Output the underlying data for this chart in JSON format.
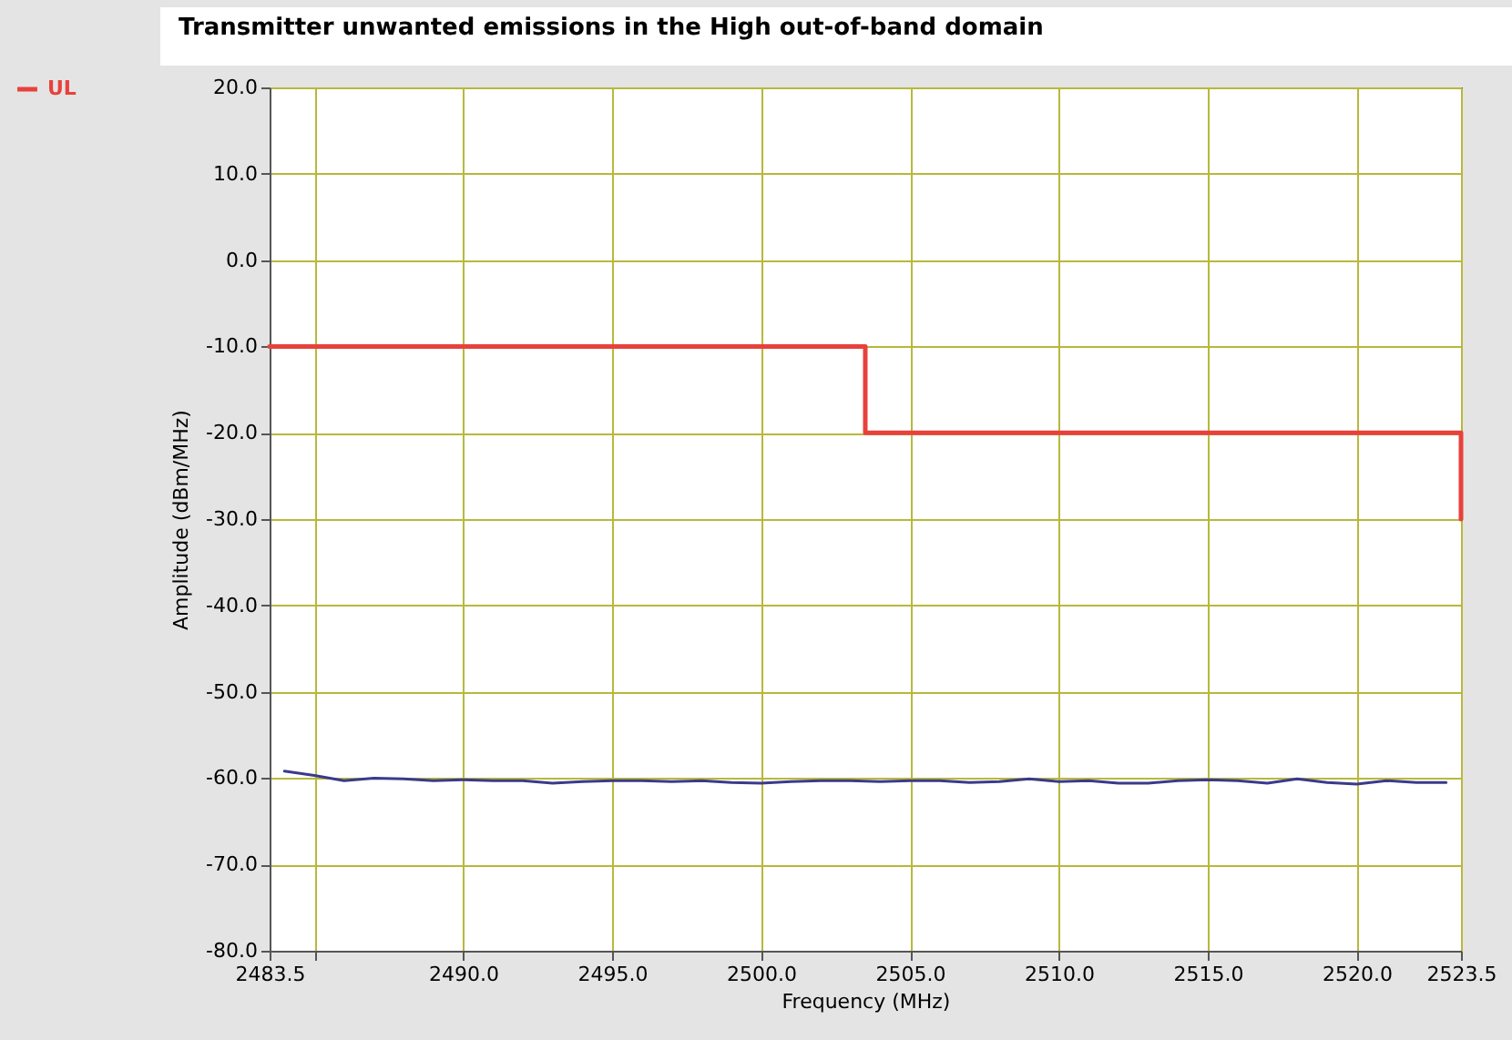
{
  "chart_data": {
    "type": "line",
    "title": "Transmitter unwanted emissions in the High out-of-band domain",
    "xlabel": "Frequency (MHz)",
    "ylabel": "Amplitude (dBm/MHz)",
    "series": [
      {
        "name": "UL",
        "color": "#e8413c",
        "x": [
          2483.5,
          2503.5,
          2503.5,
          2523.5,
          2523.5
        ],
        "values": [
          -10,
          -10,
          -20,
          -20,
          -30
        ]
      },
      {
        "color": "#3a3a8c",
        "x": [
          2484,
          2485,
          2486,
          2487,
          2488,
          2489,
          2490,
          2491,
          2492,
          2493,
          2494,
          2495,
          2496,
          2497,
          2498,
          2499,
          2500,
          2501,
          2502,
          2503,
          2504,
          2505,
          2506,
          2507,
          2508,
          2509,
          2510,
          2511,
          2512,
          2513,
          2514,
          2515,
          2516,
          2517,
          2518,
          2519,
          2520,
          2521,
          2522,
          2523
        ],
        "values": [
          -59.2,
          -59.7,
          -60.3,
          -60.0,
          -60.1,
          -60.3,
          -60.2,
          -60.3,
          -60.3,
          -60.6,
          -60.4,
          -60.3,
          -60.3,
          -60.4,
          -60.3,
          -60.5,
          -60.6,
          -60.4,
          -60.3,
          -60.3,
          -60.4,
          -60.3,
          -60.3,
          -60.5,
          -60.4,
          -60.1,
          -60.4,
          -60.3,
          -60.6,
          -60.6,
          -60.3,
          -60.2,
          -60.3,
          -60.6,
          -60.1,
          -60.5,
          -60.7,
          -60.3,
          -60.5,
          -60.5
        ]
      }
    ],
    "xlim": [
      2483.5,
      2523.5
    ],
    "xticks": [
      {
        "value": 2483.5,
        "label": "2483.5"
      },
      {
        "value": 2485,
        "label": null
      },
      {
        "value": 2490,
        "label": "2490.0"
      },
      {
        "value": 2495,
        "label": "2495.0"
      },
      {
        "value": 2500,
        "label": "2500.0"
      },
      {
        "value": 2505,
        "label": "2505.0"
      },
      {
        "value": 2510,
        "label": "2510.0"
      },
      {
        "value": 2515,
        "label": "2515.0"
      },
      {
        "value": 2520,
        "label": "2520.0"
      },
      {
        "value": 2523.5,
        "label": "2523.5"
      }
    ],
    "ylim": [
      -80,
      20
    ],
    "yticks": [
      {
        "value": -80,
        "label": "-80.0"
      },
      {
        "value": -70,
        "label": "-70.0"
      },
      {
        "value": -60,
        "label": "-60.0"
      },
      {
        "value": -50,
        "label": "-50.0"
      },
      {
        "value": -40,
        "label": "-40.0"
      },
      {
        "value": -30,
        "label": "-30.0"
      },
      {
        "value": -20,
        "label": "-20.0"
      },
      {
        "value": -10,
        "label": "-10.0"
      },
      {
        "value": 0,
        "label": "0.0"
      },
      {
        "value": 10,
        "label": "10.0"
      },
      {
        "value": 20,
        "label": "20.0"
      }
    ],
    "grid": true,
    "legend": "top left"
  }
}
